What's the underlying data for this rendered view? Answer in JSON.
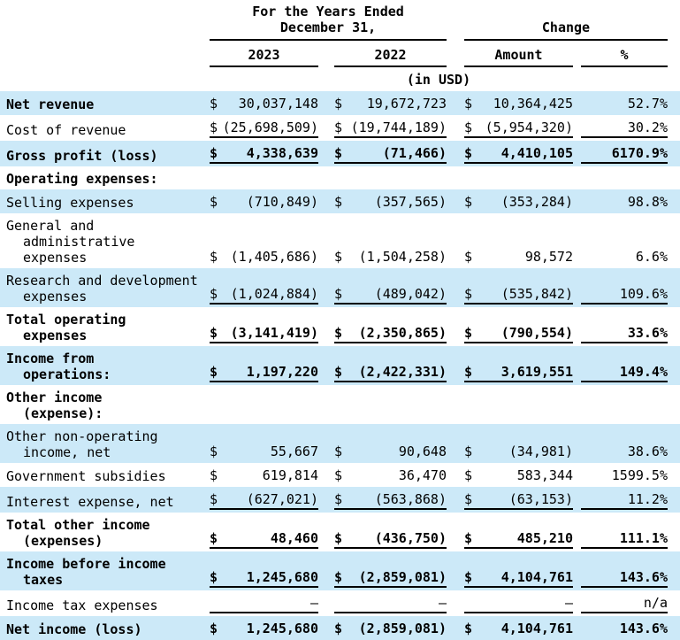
{
  "header": {
    "years_ended_line1": "For the Years Ended",
    "years_ended_line2": "December 31,",
    "change": "Change",
    "col_2023": "2023",
    "col_2022": "2022",
    "col_amount": "Amount",
    "col_pct": "%",
    "unit_note": "(in USD)"
  },
  "currency_symbol": "$",
  "colors": {
    "row_highlight": "#cce9f8",
    "text": "#000000",
    "rule": "#000000"
  },
  "columns": [
    "2023",
    "2022",
    "Amount",
    "%"
  ],
  "rows": [
    {
      "label_lines": [
        "Net revenue"
      ],
      "bold_label": true,
      "bold_values": false,
      "highlight": true,
      "underline": false,
      "show_dollar": true,
      "v2023": "30,037,148",
      "v2022": "19,672,723",
      "amount": "10,364,425",
      "pct": "52.7%"
    },
    {
      "label_lines": [
        "Cost of revenue"
      ],
      "bold_label": false,
      "bold_values": false,
      "highlight": false,
      "underline": true,
      "show_dollar": true,
      "v2023": "(25,698,509)",
      "v2022": "(19,744,189)",
      "amount": "(5,954,320)",
      "pct": "30.2%"
    },
    {
      "label_lines": [
        "Gross profit (loss)"
      ],
      "bold_label": true,
      "bold_values": true,
      "highlight": true,
      "underline": true,
      "show_dollar": true,
      "v2023": "4,338,639",
      "v2022": "(71,466)",
      "amount": "4,410,105",
      "pct": "6170.9%"
    },
    {
      "label_lines": [
        "Operating expenses:"
      ],
      "bold_label": true,
      "bold_values": false,
      "highlight": false,
      "underline": false,
      "show_dollar": false,
      "v2023": null,
      "v2022": null,
      "amount": null,
      "pct": null
    },
    {
      "label_lines": [
        "Selling expenses"
      ],
      "bold_label": false,
      "bold_values": false,
      "highlight": true,
      "underline": false,
      "show_dollar": true,
      "v2023": "(710,849)",
      "v2022": "(357,565)",
      "amount": "(353,284)",
      "pct": "98.8%"
    },
    {
      "label_lines": [
        "General and",
        "administrative",
        "expenses"
      ],
      "bold_label": false,
      "bold_values": false,
      "highlight": false,
      "underline": false,
      "show_dollar": true,
      "v2023": "(1,405,686)",
      "v2022": "(1,504,258)",
      "amount": "98,572",
      "pct": "6.6%"
    },
    {
      "label_lines": [
        "Research and development",
        "expenses"
      ],
      "bold_label": false,
      "bold_values": false,
      "highlight": true,
      "underline": true,
      "show_dollar": true,
      "v2023": "(1,024,884)",
      "v2022": "(489,042)",
      "amount": "(535,842)",
      "pct": "109.6%"
    },
    {
      "label_lines": [
        "Total operating",
        "expenses"
      ],
      "bold_label": true,
      "bold_values": true,
      "highlight": false,
      "underline": true,
      "show_dollar": true,
      "v2023": "(3,141,419)",
      "v2022": "(2,350,865)",
      "amount": "(790,554)",
      "pct": "33.6%"
    },
    {
      "label_lines": [
        "Income from",
        "operations:"
      ],
      "bold_label": true,
      "bold_values": true,
      "highlight": true,
      "underline": true,
      "show_dollar": true,
      "v2023": "1,197,220",
      "v2022": "(2,422,331)",
      "amount": "3,619,551",
      "pct": "149.4%"
    },
    {
      "label_lines": [
        "Other income",
        "(expense):"
      ],
      "bold_label": true,
      "bold_values": false,
      "highlight": false,
      "underline": false,
      "show_dollar": false,
      "v2023": null,
      "v2022": null,
      "amount": null,
      "pct": null
    },
    {
      "label_lines": [
        "Other non-operating",
        "income, net"
      ],
      "bold_label": false,
      "bold_values": false,
      "highlight": true,
      "underline": false,
      "show_dollar": true,
      "v2023": "55,667",
      "v2022": "90,648",
      "amount": "(34,981)",
      "pct": "38.6%"
    },
    {
      "label_lines": [
        "Government subsidies"
      ],
      "bold_label": false,
      "bold_values": false,
      "highlight": false,
      "underline": false,
      "show_dollar": true,
      "v2023": "619,814",
      "v2022": "36,470",
      "amount": "583,344",
      "pct": "1599.5%"
    },
    {
      "label_lines": [
        "Interest expense, net"
      ],
      "bold_label": false,
      "bold_values": false,
      "highlight": true,
      "underline": true,
      "show_dollar": true,
      "v2023": "(627,021)",
      "v2022": "(563,868)",
      "amount": "(63,153)",
      "pct": "11.2%"
    },
    {
      "label_lines": [
        "Total other income",
        "(expenses)"
      ],
      "bold_label": true,
      "bold_values": true,
      "highlight": false,
      "underline": true,
      "show_dollar": true,
      "v2023": "48,460",
      "v2022": "(436,750)",
      "amount": "485,210",
      "pct": "111.1%"
    },
    {
      "label_lines": [
        "Income before income",
        "taxes"
      ],
      "bold_label": true,
      "bold_values": true,
      "highlight": true,
      "underline": true,
      "show_dollar": true,
      "v2023": "1,245,680",
      "v2022": "(2,859,081)",
      "amount": "4,104,761",
      "pct": "143.6%"
    },
    {
      "label_lines": [
        "Income tax expenses"
      ],
      "bold_label": false,
      "bold_values": false,
      "highlight": false,
      "underline": true,
      "show_dollar": false,
      "v2023": "—",
      "v2022": "—",
      "amount": "—",
      "pct": "n/a"
    },
    {
      "label_lines": [
        "Net income (loss)"
      ],
      "bold_label": true,
      "bold_values": true,
      "highlight": true,
      "underline": false,
      "show_dollar": true,
      "v2023": "1,245,680",
      "v2022": "(2,859,081)",
      "amount": "4,104,761",
      "pct": "143.6%"
    }
  ]
}
